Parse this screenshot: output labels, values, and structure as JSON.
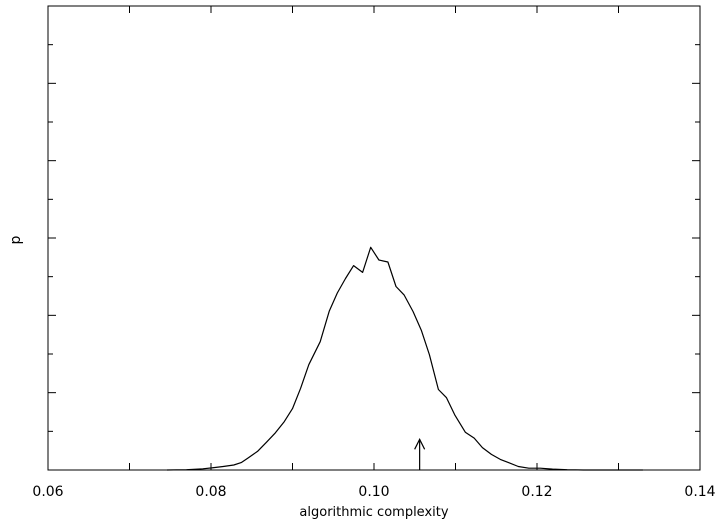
{
  "chart_data": {
    "type": "line",
    "title": "",
    "xlabel": "algorithmic complexity",
    "ylabel": "p",
    "xlim": [
      0.06,
      0.14
    ],
    "ylim": [
      0,
      1
    ],
    "x_ticks": [
      "0.06",
      "0.08",
      "0.10",
      "0.12",
      "0.14"
    ],
    "y_tick_labels": "none",
    "grid": false,
    "legend": "none",
    "series": [
      {
        "name": "",
        "x": [
          0.0746,
          0.077,
          0.079,
          0.0801,
          0.0815,
          0.0828,
          0.0837,
          0.0845,
          0.0857,
          0.0868,
          0.0879,
          0.089,
          0.09,
          0.091,
          0.092,
          0.0934,
          0.0945,
          0.0955,
          0.0965,
          0.0975,
          0.0986,
          0.0996,
          0.1006,
          0.1017,
          0.1027,
          0.1037,
          0.1048,
          0.1058,
          0.1068,
          0.1079,
          0.1089,
          0.1099,
          0.1112,
          0.1123,
          0.1133,
          0.1144,
          0.1155,
          0.1165,
          0.1177,
          0.119,
          0.1204,
          0.1219,
          0.1237,
          0.1257,
          0.1278,
          0.1303
        ],
        "y": [
          0.0,
          0.001,
          0.004,
          0.007,
          0.012,
          0.017,
          0.025,
          0.04,
          0.063,
          0.094,
          0.126,
          0.164,
          0.208,
          0.277,
          0.357,
          0.435,
          0.538,
          0.6,
          0.649,
          0.693,
          0.67,
          0.755,
          0.712,
          0.705,
          0.622,
          0.593,
          0.537,
          0.474,
          0.391,
          0.273,
          0.245,
          0.187,
          0.128,
          0.108,
          0.076,
          0.053,
          0.036,
          0.025,
          0.012,
          0.006,
          0.006,
          0.003,
          0.001,
          0.0,
          0.0,
          0.0
        ]
      }
    ],
    "annotations": [
      {
        "type": "arrow",
        "x": 0.1056,
        "y_from": 0.0,
        "y_to": 0.104
      }
    ]
  }
}
